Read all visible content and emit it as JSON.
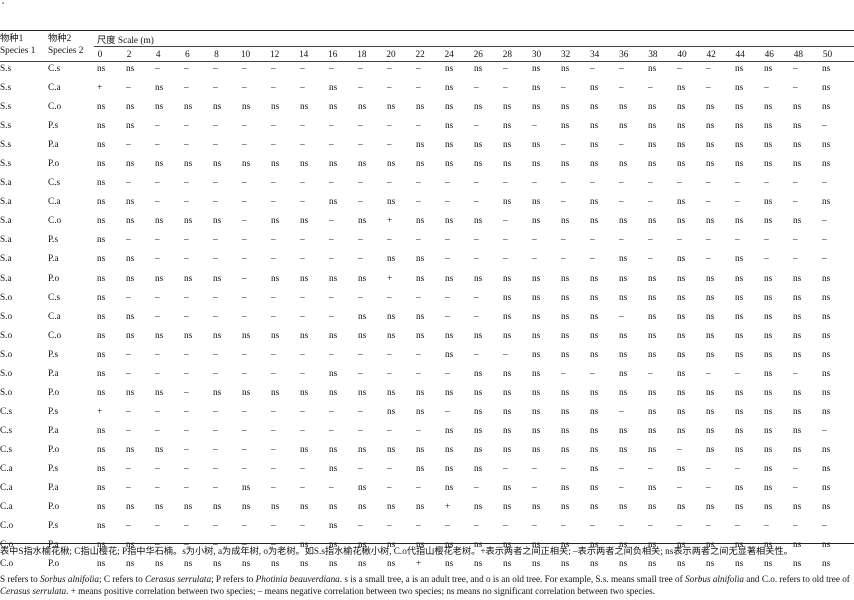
{
  "header": {
    "species1_cn": "物种1",
    "species1_en": "Species 1",
    "species2_cn": "物种2",
    "species2_en": "Species 2",
    "scale_label": "尺度  Scale (m)",
    "scales": [
      "0",
      "2",
      "4",
      "6",
      "8",
      "10",
      "12",
      "14",
      "16",
      "18",
      "20",
      "22",
      "24",
      "26",
      "28",
      "30",
      "32",
      "34",
      "36",
      "38",
      "40",
      "42",
      "44",
      "46",
      "48",
      "50"
    ]
  },
  "rows": [
    {
      "s1": "S.s",
      "s2": "C.s",
      "v": [
        "ns",
        "ns",
        "–",
        "–",
        "–",
        "–",
        "–",
        "–",
        "–",
        "–",
        "–",
        "–",
        "ns",
        "ns",
        "–",
        "ns",
        "ns",
        "–",
        "–",
        "ns",
        "–",
        "–",
        "ns",
        "ns",
        "–",
        "ns"
      ]
    },
    {
      "s1": "S.s",
      "s2": "C.a",
      "v": [
        "+",
        "–",
        "ns",
        "–",
        "–",
        "–",
        "–",
        "–",
        "ns",
        "–",
        "–",
        "–",
        "ns",
        "–",
        "–",
        "ns",
        "–",
        "ns",
        "–",
        "–",
        "ns",
        "–",
        "ns",
        "–",
        "–",
        "ns"
      ]
    },
    {
      "s1": "S.s",
      "s2": "C.o",
      "v": [
        "ns",
        "ns",
        "ns",
        "ns",
        "ns",
        "ns",
        "ns",
        "ns",
        "ns",
        "ns",
        "ns",
        "ns",
        "ns",
        "ns",
        "ns",
        "ns",
        "ns",
        "ns",
        "ns",
        "ns",
        "ns",
        "ns",
        "ns",
        "ns",
        "ns",
        "ns"
      ]
    },
    {
      "s1": "S.s",
      "s2": "P.s",
      "v": [
        "ns",
        "ns",
        "–",
        "–",
        "–",
        "–",
        "–",
        "–",
        "–",
        "–",
        "–",
        "–",
        "ns",
        "–",
        "ns",
        "–",
        "ns",
        "ns",
        "ns",
        "ns",
        "ns",
        "ns",
        "ns",
        "ns",
        "ns",
        "–"
      ]
    },
    {
      "s1": "S.s",
      "s2": "P.a",
      "v": [
        "ns",
        "–",
        "–",
        "–",
        "–",
        "–",
        "–",
        "–",
        "–",
        "–",
        "–",
        "ns",
        "ns",
        "ns",
        "ns",
        "ns",
        "–",
        "ns",
        "–",
        "ns",
        "ns",
        "ns",
        "ns",
        "ns",
        "ns",
        "ns"
      ]
    },
    {
      "s1": "S.s",
      "s2": "P.o",
      "v": [
        "ns",
        "ns",
        "ns",
        "ns",
        "ns",
        "ns",
        "ns",
        "ns",
        "ns",
        "ns",
        "ns",
        "ns",
        "ns",
        "ns",
        "ns",
        "ns",
        "ns",
        "ns",
        "ns",
        "ns",
        "ns",
        "ns",
        "ns",
        "ns",
        "ns",
        "ns"
      ]
    },
    {
      "s1": "S.a",
      "s2": "C.s",
      "v": [
        "ns",
        "–",
        "–",
        "–",
        "–",
        "–",
        "–",
        "–",
        "–",
        "–",
        "–",
        "–",
        "–",
        "–",
        "–",
        "–",
        "–",
        "–",
        "–",
        "–",
        "–",
        "–",
        "–",
        "–",
        "–",
        "–"
      ]
    },
    {
      "s1": "S.a",
      "s2": "C.a",
      "v": [
        "ns",
        "ns",
        "–",
        "–",
        "–",
        "–",
        "–",
        "–",
        "ns",
        "–",
        "ns",
        "–",
        "–",
        "–",
        "ns",
        "ns",
        "–",
        "ns",
        "–",
        "–",
        "ns",
        "–",
        "–",
        "ns",
        "–",
        "ns"
      ]
    },
    {
      "s1": "S.a",
      "s2": "C.o",
      "v": [
        "ns",
        "ns",
        "ns",
        "ns",
        "ns",
        "–",
        "ns",
        "ns",
        "–",
        "ns",
        "+",
        "ns",
        "ns",
        "ns",
        "–",
        "ns",
        "ns",
        "ns",
        "ns",
        "ns",
        "ns",
        "ns",
        "ns",
        "ns",
        "ns",
        "–"
      ]
    },
    {
      "s1": "S.a",
      "s2": "P.s",
      "v": [
        "ns",
        "–",
        "–",
        "–",
        "–",
        "–",
        "–",
        "–",
        "–",
        "–",
        "–",
        "–",
        "–",
        "–",
        "–",
        "–",
        "–",
        "–",
        "–",
        "–",
        "–",
        "–",
        "–",
        "–",
        "–",
        "–"
      ]
    },
    {
      "s1": "S.a",
      "s2": "P.a",
      "v": [
        "ns",
        "ns",
        "–",
        "–",
        "–",
        "–",
        "–",
        "–",
        "–",
        "–",
        "ns",
        "ns",
        "–",
        "–",
        "–",
        "–",
        "–",
        "–",
        "ns",
        "–",
        "ns",
        "–",
        "ns",
        "–",
        "–",
        "–"
      ]
    },
    {
      "s1": "S.a",
      "s2": "P.o",
      "v": [
        "ns",
        "ns",
        "ns",
        "ns",
        "ns",
        "–",
        "ns",
        "ns",
        "ns",
        "ns",
        "+",
        "ns",
        "ns",
        "ns",
        "ns",
        "ns",
        "ns",
        "ns",
        "ns",
        "ns",
        "ns",
        "ns",
        "ns",
        "ns",
        "ns",
        "ns"
      ]
    },
    {
      "s1": "S.o",
      "s2": "C.s",
      "v": [
        "ns",
        "–",
        "–",
        "–",
        "–",
        "–",
        "–",
        "–",
        "–",
        "–",
        "–",
        "–",
        "–",
        "–",
        "ns",
        "ns",
        "ns",
        "ns",
        "ns",
        "ns",
        "ns",
        "ns",
        "ns",
        "ns",
        "ns",
        "ns"
      ]
    },
    {
      "s1": "S.o",
      "s2": "C.a",
      "v": [
        "ns",
        "ns",
        "–",
        "–",
        "–",
        "–",
        "–",
        "–",
        "–",
        "ns",
        "ns",
        "ns",
        "–",
        "–",
        "ns",
        "ns",
        "ns",
        "ns",
        "–",
        "ns",
        "ns",
        "ns",
        "ns",
        "ns",
        "ns",
        "ns"
      ]
    },
    {
      "s1": "S.o",
      "s2": "C.o",
      "v": [
        "ns",
        "ns",
        "ns",
        "ns",
        "ns",
        "ns",
        "ns",
        "ns",
        "ns",
        "ns",
        "ns",
        "ns",
        "ns",
        "ns",
        "ns",
        "ns",
        "ns",
        "ns",
        "ns",
        "ns",
        "ns",
        "ns",
        "ns",
        "ns",
        "ns",
        "ns"
      ]
    },
    {
      "s1": "S.o",
      "s2": "P.s",
      "v": [
        "ns",
        "–",
        "–",
        "–",
        "–",
        "–",
        "–",
        "–",
        "–",
        "–",
        "–",
        "–",
        "ns",
        "–",
        "–",
        "ns",
        "ns",
        "ns",
        "ns",
        "ns",
        "ns",
        "ns",
        "ns",
        "ns",
        "ns",
        "ns"
      ]
    },
    {
      "s1": "S.o",
      "s2": "P.a",
      "v": [
        "ns",
        "–",
        "–",
        "–",
        "–",
        "–",
        "–",
        "–",
        "ns",
        "–",
        "–",
        "–",
        "–",
        "ns",
        "ns",
        "ns",
        "–",
        "–",
        "ns",
        "–",
        "ns",
        "–",
        "–",
        "ns",
        "–",
        "ns"
      ]
    },
    {
      "s1": "S.o",
      "s2": "P.o",
      "v": [
        "ns",
        "ns",
        "ns",
        "–",
        "ns",
        "ns",
        "ns",
        "ns",
        "ns",
        "ns",
        "ns",
        "ns",
        "ns",
        "ns",
        "ns",
        "ns",
        "ns",
        "ns",
        "ns",
        "ns",
        "ns",
        "ns",
        "ns",
        "ns",
        "ns",
        "ns"
      ]
    },
    {
      "s1": "C.s",
      "s2": "P.s",
      "v": [
        "+",
        "–",
        "–",
        "–",
        "–",
        "–",
        "–",
        "–",
        "–",
        "–",
        "ns",
        "ns",
        "–",
        "ns",
        "ns",
        "ns",
        "ns",
        "ns",
        "–",
        "ns",
        "ns",
        "ns",
        "ns",
        "ns",
        "ns",
        "ns"
      ]
    },
    {
      "s1": "C.s",
      "s2": "P.a",
      "v": [
        "ns",
        "–",
        "–",
        "–",
        "–",
        "–",
        "–",
        "–",
        "–",
        "–",
        "–",
        "–",
        "ns",
        "ns",
        "ns",
        "ns",
        "ns",
        "ns",
        "ns",
        "ns",
        "ns",
        "ns",
        "ns",
        "ns",
        "ns",
        "–"
      ]
    },
    {
      "s1": "C.s",
      "s2": "P.o",
      "v": [
        "ns",
        "ns",
        "ns",
        "–",
        "–",
        "–",
        "–",
        "ns",
        "ns",
        "ns",
        "ns",
        "ns",
        "ns",
        "ns",
        "ns",
        "ns",
        "ns",
        "ns",
        "ns",
        "ns",
        "–",
        "ns",
        "ns",
        "ns",
        "ns",
        "ns"
      ]
    },
    {
      "s1": "C.a",
      "s2": "P.s",
      "v": [
        "ns",
        "–",
        "–",
        "–",
        "–",
        "–",
        "–",
        "–",
        "ns",
        "–",
        "–",
        "ns",
        "ns",
        "ns",
        "–",
        "–",
        "–",
        "ns",
        "–",
        "–",
        "ns",
        "–",
        "–",
        "ns",
        "–",
        "ns"
      ]
    },
    {
      "s1": "C.a",
      "s2": "P.a",
      "v": [
        "ns",
        "–",
        "–",
        "–",
        "–",
        "ns",
        "–",
        "–",
        "–",
        "ns",
        "–",
        "–",
        "ns",
        "–",
        "ns",
        "–",
        "ns",
        "ns",
        "–",
        "ns",
        "–",
        "–",
        "ns",
        "ns",
        "–",
        "ns"
      ]
    },
    {
      "s1": "C.a",
      "s2": "P.o",
      "v": [
        "ns",
        "ns",
        "ns",
        "ns",
        "ns",
        "ns",
        "ns",
        "ns",
        "ns",
        "ns",
        "ns",
        "ns",
        "+",
        "ns",
        "ns",
        "ns",
        "ns",
        "ns",
        "ns",
        "ns",
        "ns",
        "ns",
        "ns",
        "ns",
        "ns",
        "ns"
      ]
    },
    {
      "s1": "C.o",
      "s2": "P.s",
      "v": [
        "ns",
        "–",
        "–",
        "–",
        "–",
        "–",
        "–",
        "–",
        "ns",
        "–",
        "–",
        "–",
        "–",
        "–",
        "–",
        "–",
        "–",
        "–",
        "–",
        "–",
        "–",
        "–",
        "–",
        "–",
        "–",
        "–"
      ]
    },
    {
      "s1": "C.o",
      "s2": "P.a",
      "v": [
        "ns",
        "ns",
        "–",
        "–",
        "–",
        "–",
        "–",
        "ns",
        "ns",
        "ns",
        "ns",
        "ns",
        "ns",
        "ns",
        "ns",
        "ns",
        "ns",
        "ns",
        "ns",
        "ns",
        "ns",
        "ns",
        "ns",
        "ns",
        "ns",
        "ns"
      ]
    },
    {
      "s1": "C.o",
      "s2": "P.o",
      "v": [
        "ns",
        "ns",
        "ns",
        "ns",
        "ns",
        "ns",
        "ns",
        "ns",
        "ns",
        "ns",
        "ns",
        "+",
        "ns",
        "ns",
        "ns",
        "ns",
        "ns",
        "ns",
        "ns",
        "ns",
        "ns",
        "ns",
        "ns",
        "ns",
        "ns",
        "ns"
      ]
    }
  ],
  "footnote_cn": "表中S指水榆花楸; C指山樱花; P指中华石楠。s为小树, a为成年树, o为老树。如S.s指水榆花楸小树, C.o代指山樱花老树。+表示两者之间正相关; –表示两者之间负相关; ns表示两者之间无显著相关性。",
  "footnote_en": {
    "p1": "S refers to ",
    "sp1": "Sorbus alnifolia",
    "p2": "; C refers to ",
    "sp2": "Cerasus serrulata",
    "p3": "; P refers to ",
    "sp3": "Photinia beauverdiana",
    "p4": ". s is a small tree, a is an adult tree, and o is an old tree. For example, S.s. means small tree of ",
    "sp4": "Sorbus alnifolia",
    "p5": " and C.o. refers to old tree of ",
    "sp5": "Cerasus serrulata",
    "p6": ". + means positive correlation between two species; – means negative correlation between two species; ns means no significant correlation between two species."
  }
}
